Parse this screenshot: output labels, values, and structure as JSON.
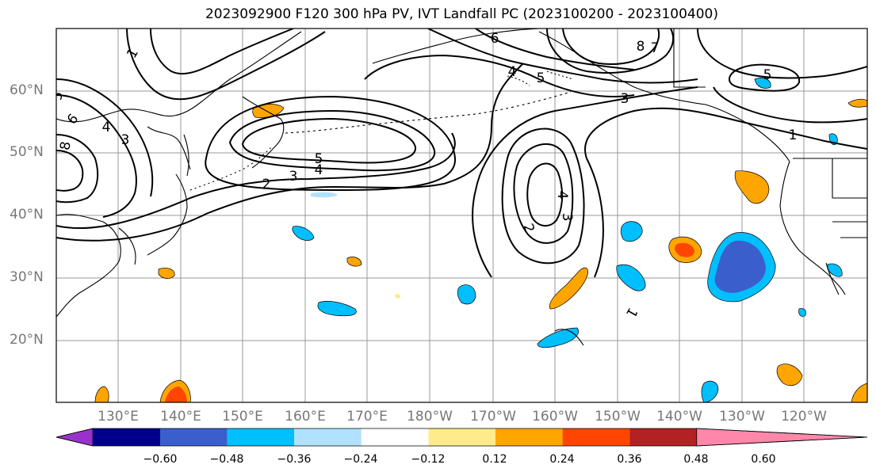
{
  "title": "2023092900 F120 300 hPa PV, IVT Landfall PC (2023100200 - 2023100400)",
  "lat_labels": [
    "60°N",
    "50°N",
    "40°N",
    "30°N",
    "20°N"
  ],
  "lon_labels": [
    "130°E",
    "140°E",
    "150°E",
    "160°E",
    "170°E",
    "180°W",
    "170°W",
    "160°W",
    "150°W",
    "140°W",
    "130°W",
    "120°W"
  ],
  "colorbar": {
    "ticks": [
      "−0.60",
      "−0.48",
      "−0.36",
      "−0.24",
      "−0.12",
      "0.12",
      "0.24",
      "0.36",
      "0.48",
      "0.60"
    ],
    "colors": [
      "#9932cc",
      "#00008b",
      "#3a5fcd",
      "#00bfff",
      "#b0e2ff",
      "#ffffff",
      "#ffeb8a",
      "#ffa500",
      "#ff4500",
      "#b22222",
      "#ff88aa"
    ]
  },
  "contour_labels": [
    "5",
    "1",
    "6",
    "4",
    "3",
    "8",
    "5",
    "4",
    "3",
    "2",
    "6",
    "7",
    "4",
    "8",
    "5",
    "3",
    "1",
    "4",
    "3",
    "2",
    "5",
    "1"
  ]
}
